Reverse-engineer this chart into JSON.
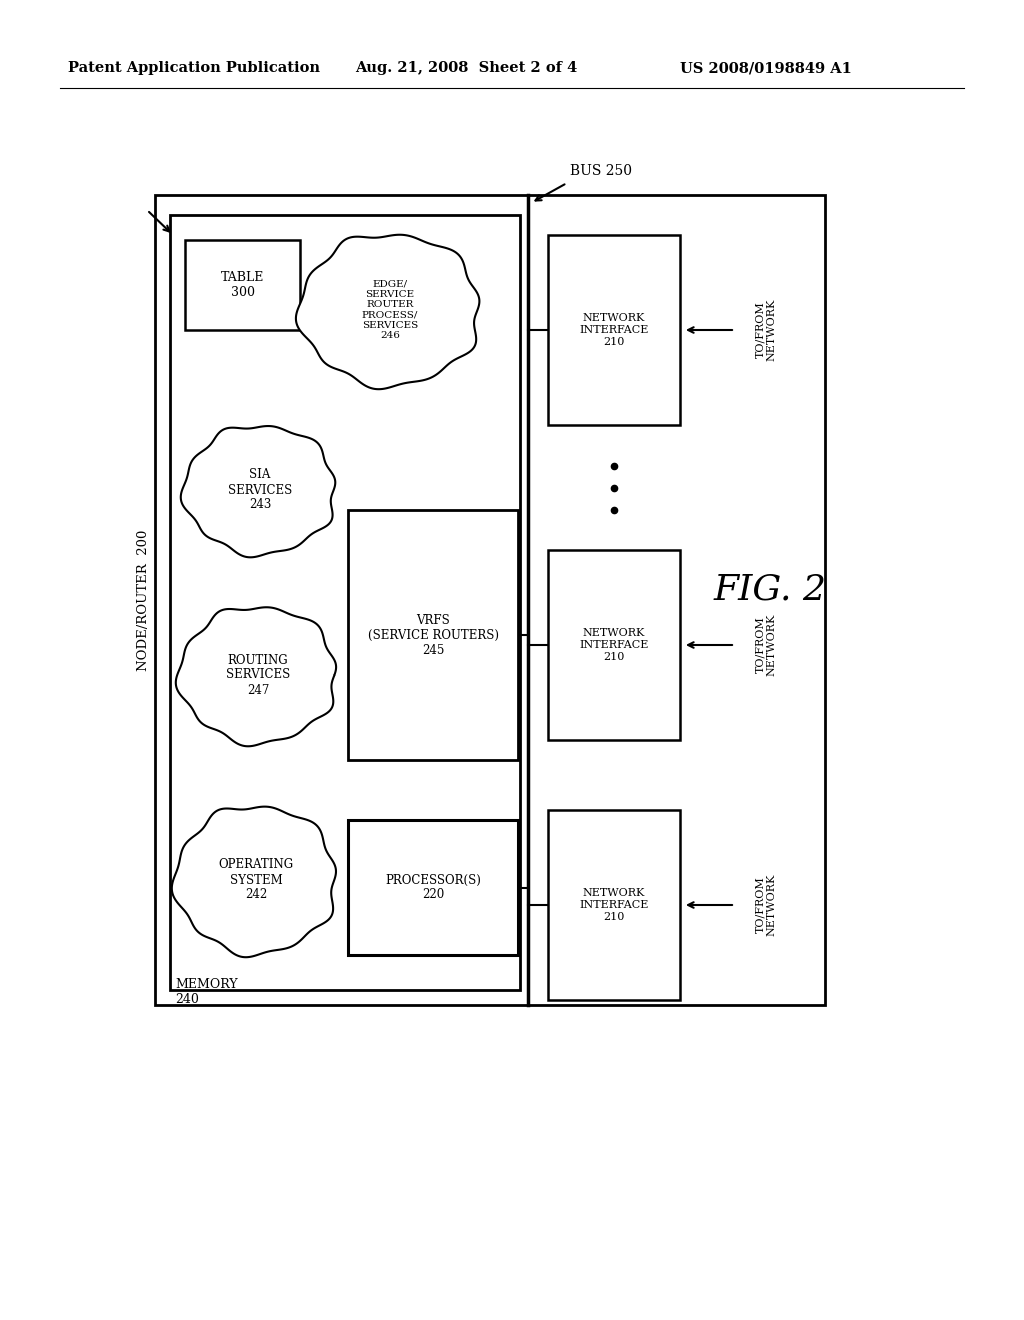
{
  "bg_color": "#ffffff",
  "header_left": "Patent Application Publication",
  "header_mid": "Aug. 21, 2008  Sheet 2 of 4",
  "header_right": "US 2008/0198849 A1",
  "fig_label": "FIG. 2",
  "node_router_label": "NODE/ROUTER  200",
  "bus_label": "BUS 250",
  "memory_label": "MEMORY\n240",
  "table_label": "TABLE\n300",
  "edge_service_label": "EDGE/\nSERVICE\nROUTER\nPROCESS/\nSERVICES\n246",
  "sia_label": "SIA\nSERVICES\n243",
  "routing_label": "ROUTING\nSERVICES\n247",
  "vrfs_label": "VRFS\n(SERVICE ROUTERS)\n245",
  "os_label": "OPERATING\nSYSTEM\n242",
  "processor_label": "PROCESSOR(S)\n220",
  "ni_label": "NETWORK\nINTERFACE\n210",
  "to_from_label": "TO/FROM\nNETWORK"
}
